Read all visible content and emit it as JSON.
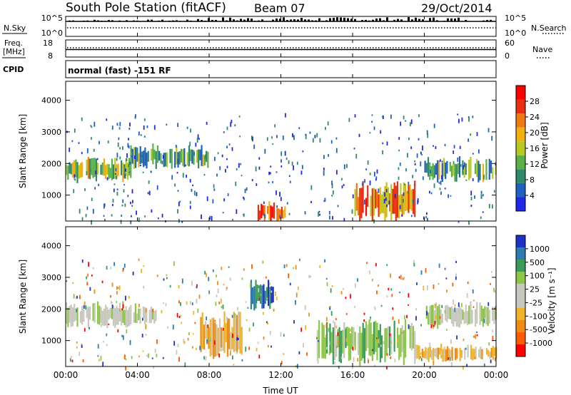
{
  "header": {
    "station": "South Pole Station (fitACF)",
    "beam": "Beam 07",
    "date": "29/Oct/2014"
  },
  "panels": {
    "nsky": {
      "left_label": "N.Sky",
      "right_label": "N.Search",
      "left_ticks": [
        "10^5",
        "10^0"
      ],
      "right_ticks": [
        "10^5",
        "10^0"
      ]
    },
    "freq": {
      "left_label_1": "Freq.",
      "left_label_2": "[MHz]",
      "right_label": "Nave",
      "left_ticks": [
        "18",
        "8"
      ],
      "right_ticks": [
        "60",
        "0"
      ]
    },
    "cpid": {
      "left_label": "CPID",
      "text": "normal (fast) -151 RF"
    }
  },
  "colors": {
    "power": [
      "#1e28e6",
      "#2060c0",
      "#2e8a6a",
      "#5bb04a",
      "#b8c820",
      "#f0b010",
      "#f07a10",
      "#e83010",
      "#ff0000"
    ],
    "velocity": [
      "#ff0000",
      "#ff5a00",
      "#f08c14",
      "#f0b428",
      "#c8c8be",
      "#c8c8be",
      "#8cc846",
      "#3c9a5a",
      "#2d7bb0",
      "#1e32c8"
    ]
  },
  "chart_data": [
    {
      "type": "heatmap",
      "title": "Power",
      "xlabel": "",
      "ylabel": "Slant Range [km]",
      "x_ticks": [
        "00:00",
        "04:00",
        "08:00",
        "12:00",
        "16:00",
        "20:00",
        "00:00"
      ],
      "x_range_hours": [
        0,
        24
      ],
      "y_ticks": [
        "1000",
        "2000",
        "3000",
        "4000"
      ],
      "ylim": [
        180,
        4600
      ],
      "colorbar": {
        "label": "Power [dB]",
        "ticks": [
          "4",
          "8",
          "12",
          "16",
          "20",
          "24",
          "28"
        ],
        "range": [
          0,
          30
        ]
      },
      "features": [
        {
          "start": 0,
          "end": 3.6,
          "range_km": [
            1500,
            2100
          ],
          "value_db": 14
        },
        {
          "start": 3.6,
          "end": 8.0,
          "range_km": [
            1900,
            2500
          ],
          "value_db": 12
        },
        {
          "start": 10.7,
          "end": 12.3,
          "range_km": [
            200,
            700
          ],
          "value_db": 26
        },
        {
          "start": 16.1,
          "end": 19.5,
          "range_km": [
            300,
            1300
          ],
          "value_db": 24
        },
        {
          "start": 20.0,
          "end": 24.0,
          "range_km": [
            1500,
            2100
          ],
          "value_db": 12
        }
      ]
    },
    {
      "type": "heatmap",
      "title": "Velocity",
      "xlabel": "Time UT",
      "ylabel": "Slant Range [km]",
      "x_ticks": [
        "00:00",
        "04:00",
        "08:00",
        "12:00",
        "16:00",
        "20:00",
        "00:00"
      ],
      "x_range_hours": [
        0,
        24
      ],
      "y_ticks": [
        "1000",
        "2000",
        "3000",
        "4000"
      ],
      "ylim": [
        180,
        4600
      ],
      "colorbar": {
        "label": "Velocity [m s⁻¹]",
        "ticks": [
          "1000",
          "500",
          "100",
          "25",
          "-25",
          "-100",
          "-500",
          "-1000"
        ],
        "range": [
          -1200,
          1200
        ]
      },
      "features": [
        {
          "start": 0,
          "end": 5.2,
          "range_km": [
            1500,
            2100
          ],
          "value_ms": 0
        },
        {
          "start": 7.5,
          "end": 9.8,
          "range_km": [
            600,
            1700
          ],
          "value_ms": -400
        },
        {
          "start": 10.3,
          "end": 11.6,
          "range_km": [
            2000,
            2800
          ],
          "value_ms": 900
        },
        {
          "start": 14.0,
          "end": 19.5,
          "range_km": [
            400,
            1500
          ],
          "value_ms": 300
        },
        {
          "start": 20.0,
          "end": 24.0,
          "range_km": [
            1500,
            2100
          ],
          "value_ms": 0
        },
        {
          "start": 19.5,
          "end": 24.0,
          "range_km": [
            400,
            800
          ],
          "value_ms": -400
        }
      ]
    }
  ]
}
